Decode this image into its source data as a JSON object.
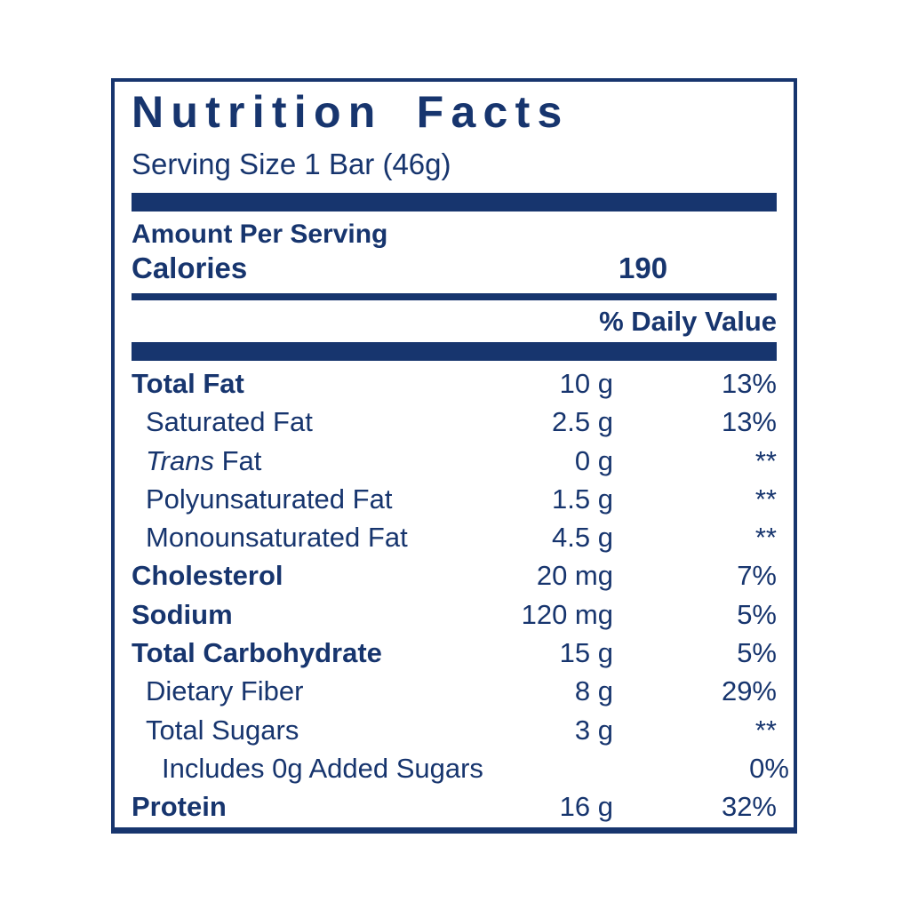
{
  "label": {
    "title": "Nutrition Facts",
    "serving_size": "Serving Size 1 Bar (46g)",
    "amount_per_serving": "Amount Per Serving",
    "calories_label": "Calories",
    "calories_value": "190",
    "daily_value_header": "% Daily Value",
    "colors": {
      "navy": "#17356e",
      "background": "#ffffff"
    },
    "rows": [
      {
        "label": "Total Fat",
        "italic_prefix": "",
        "amount": "10 g",
        "dv": "13%",
        "bold": true,
        "indent": 0
      },
      {
        "label": "Saturated Fat",
        "italic_prefix": "",
        "amount": "2.5 g",
        "dv": "13%",
        "bold": false,
        "indent": 1
      },
      {
        "label": " Fat",
        "italic_prefix": "Trans",
        "amount": "0 g",
        "dv": "**",
        "bold": false,
        "indent": 1
      },
      {
        "label": "Polyunsaturated Fat",
        "italic_prefix": "",
        "amount": "1.5 g",
        "dv": "**",
        "bold": false,
        "indent": 1
      },
      {
        "label": "Monounsaturated Fat",
        "italic_prefix": "",
        "amount": "4.5 g",
        "dv": "**",
        "bold": false,
        "indent": 1
      },
      {
        "label": "Cholesterol",
        "italic_prefix": "",
        "amount": "20 mg",
        "dv": "7%",
        "bold": true,
        "indent": 0
      },
      {
        "label": "Sodium",
        "italic_prefix": "",
        "amount": "120 mg",
        "dv": "5%",
        "bold": true,
        "indent": 0
      },
      {
        "label": "Total Carbohydrate",
        "italic_prefix": "",
        "amount": "15 g",
        "dv": "5%",
        "bold": true,
        "indent": 0
      },
      {
        "label": "Dietary Fiber",
        "italic_prefix": "",
        "amount": "8 g",
        "dv": "29%",
        "bold": false,
        "indent": 1
      },
      {
        "label": "Total Sugars",
        "italic_prefix": "",
        "amount": "3 g",
        "dv": "**",
        "bold": false,
        "indent": 1
      },
      {
        "label": "Includes 0g Added Sugars",
        "italic_prefix": "",
        "amount": "",
        "dv": "0%",
        "bold": false,
        "indent": 2
      },
      {
        "label": "Protein",
        "italic_prefix": "",
        "amount": "16 g",
        "dv": "32%",
        "bold": true,
        "indent": 0
      }
    ]
  }
}
